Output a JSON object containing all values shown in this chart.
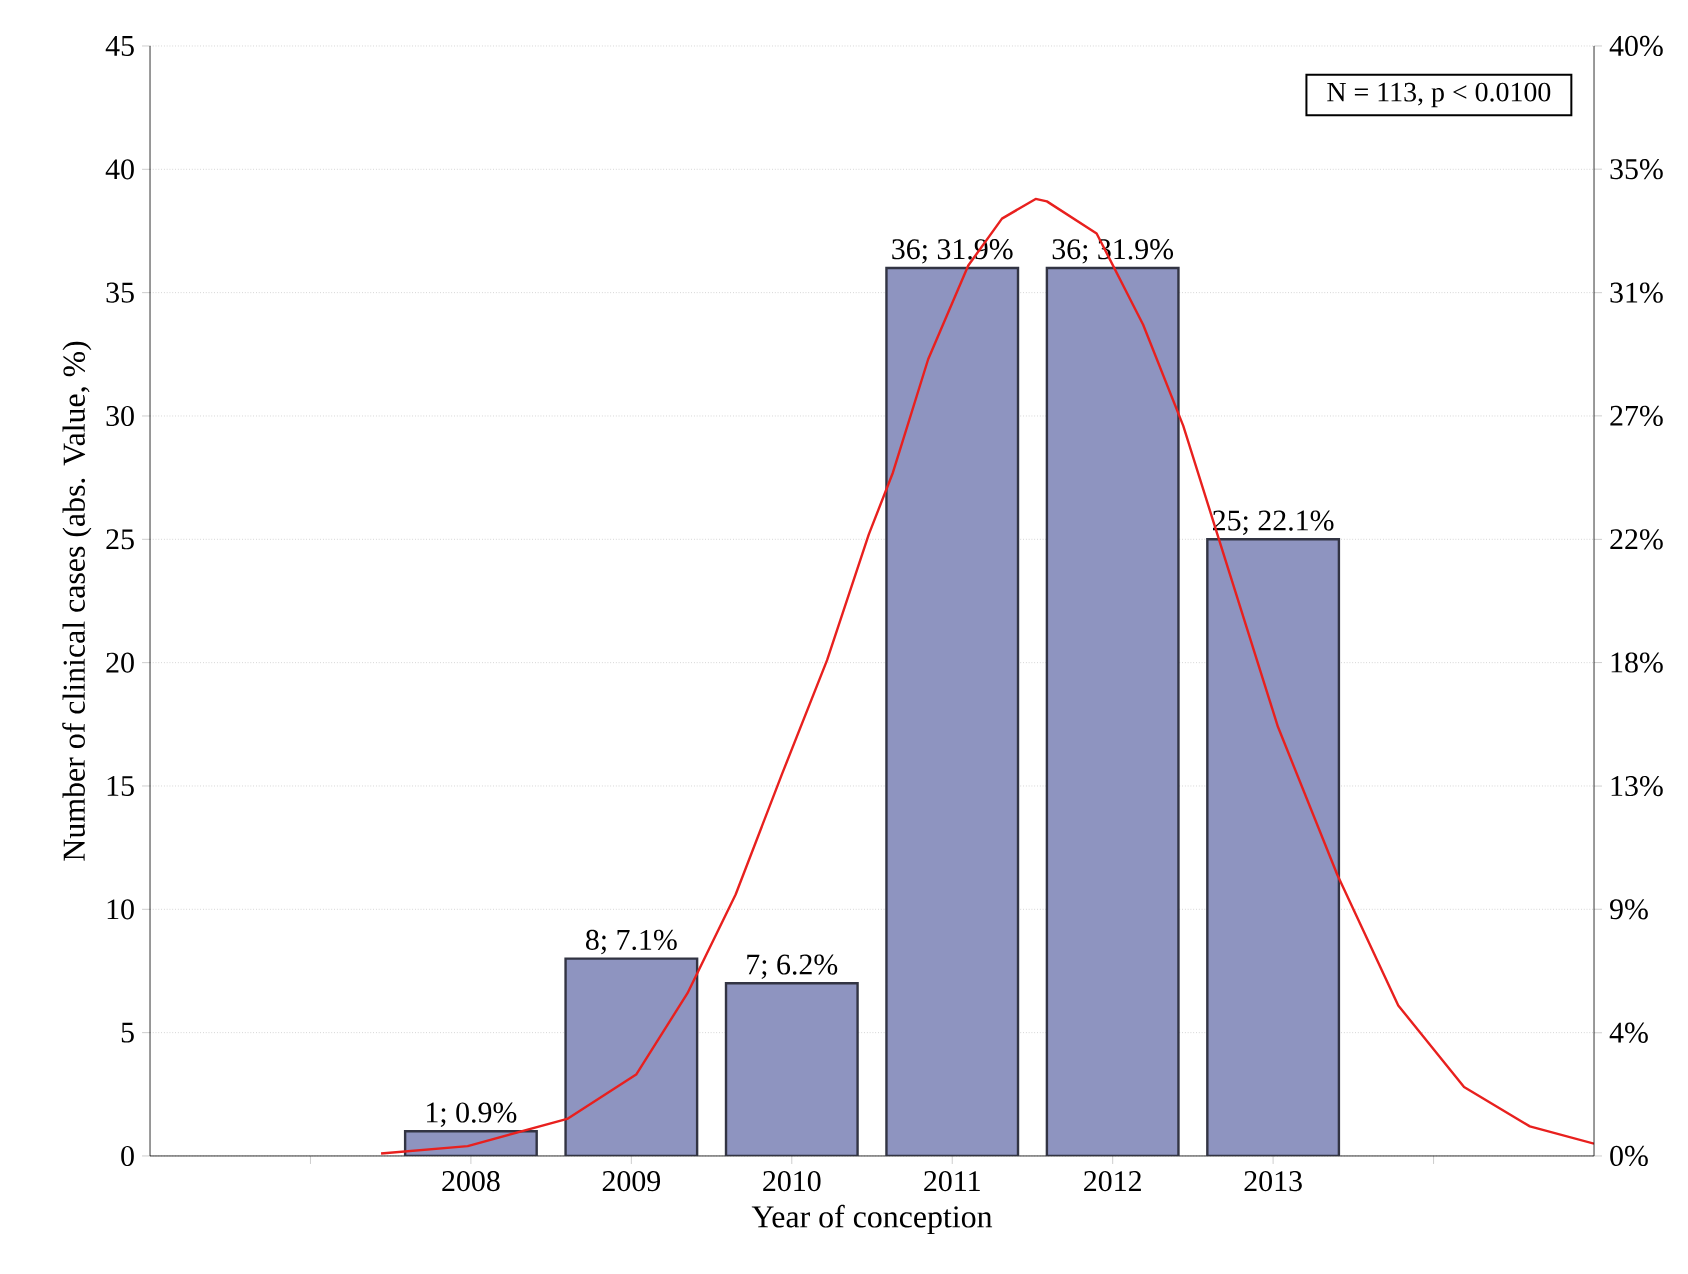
{
  "chart_data": {
    "type": "bar",
    "xlabel": "Year of conception",
    "ylabel": "Number of clinical cases (abs. Value, %)",
    "annotations": [
      "N = 113, p < 0.0100"
    ],
    "x": [
      2008,
      2009,
      2010,
      2011,
      2012,
      2013
    ],
    "xlim": [
      2006,
      2015
    ],
    "xticks": [
      {
        "value": 2007,
        "label": null
      },
      2008,
      2009,
      2010,
      2011,
      2012,
      2013,
      {
        "value": 2014,
        "label": null
      }
    ],
    "ylim": [
      0,
      45
    ],
    "yticks": [
      0,
      5,
      10,
      15,
      20,
      25,
      30,
      35,
      40,
      45
    ],
    "y2lim": [
      0,
      39.82
    ],
    "y2ticks": [
      {
        "value": 0,
        "label": "0%"
      },
      {
        "value": 4.42,
        "label": "4%"
      },
      {
        "value": 8.85,
        "label": "9%"
      },
      {
        "value": 13.27,
        "label": "13%"
      },
      {
        "value": 17.7,
        "label": "18%"
      },
      {
        "value": 22.12,
        "label": "22%"
      },
      {
        "value": 26.55,
        "label": "27%"
      },
      {
        "value": 30.97,
        "label": "31%"
      },
      {
        "value": 35.4,
        "label": "35%"
      },
      {
        "value": 39.82,
        "label": "40%"
      }
    ],
    "grid": "y",
    "series": [
      {
        "color": "#8e94c0",
        "values": [
          1,
          8,
          7,
          36,
          36,
          25
        ],
        "value_labels": [
          "1; 0.9%",
          "8; 7.1%",
          "7; 6.2%",
          "36; 31.9%",
          "36; 31.9%",
          "25; 22.1%"
        ]
      },
      {
        "type": "line",
        "color": "#e8201e",
        "x": [
          2007.44,
          2007.98,
          2008.6,
          2009.03,
          2009.35,
          2009.65,
          2009.94,
          2010.22,
          2010.48,
          2010.63,
          2010.85,
          2011.1,
          2011.31,
          2011.52,
          2011.59,
          2011.9,
          2012.19,
          2012.44,
          2012.73,
          2013.03,
          2013.4,
          2013.78,
          2014.19,
          2014.6,
          2015.0
        ],
        "values": [
          0.1,
          0.4,
          1.5,
          3.3,
          6.6,
          10.6,
          15.5,
          20.1,
          25.2,
          27.7,
          32.3,
          36.1,
          38.0,
          38.8,
          38.7,
          37.4,
          33.7,
          29.6,
          23.6,
          17.4,
          11.4,
          6.1,
          2.8,
          1.2,
          0.5
        ]
      }
    ]
  }
}
